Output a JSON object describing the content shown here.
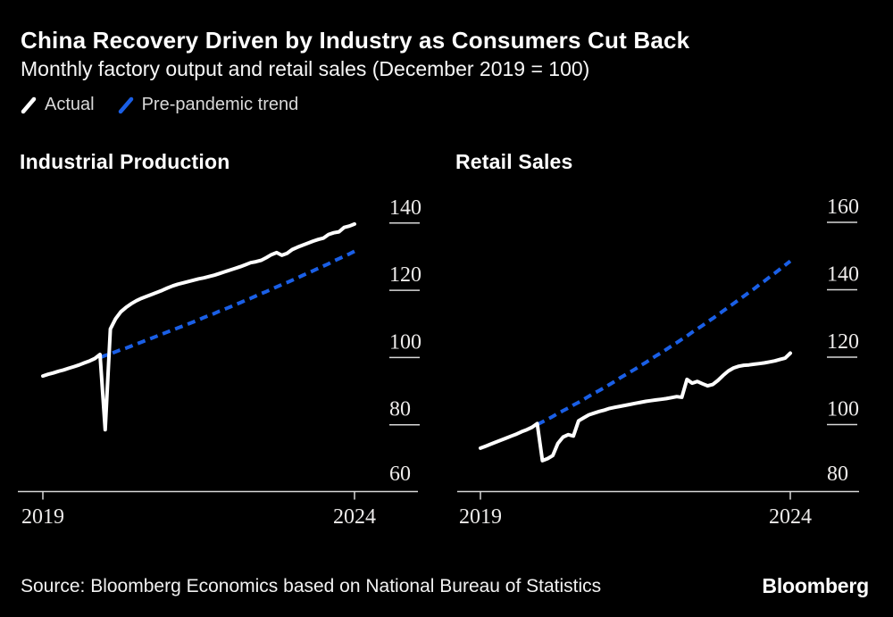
{
  "header": {
    "title": "China Recovery Driven by Industry as Consumers Cut Back",
    "subtitle": "Monthly factory output and retail sales (December 2019 = 100)"
  },
  "legend": {
    "actual_label": "Actual",
    "trend_label": "Pre-pandemic trend"
  },
  "colors": {
    "background": "#000000",
    "actual": "#ffffff",
    "trend": "#1a5fe6",
    "axis_line": "#d8d8d8",
    "axis_text": "#eeeceb"
  },
  "footer": {
    "source": "Source: Bloomberg Economics based on National Bureau of Statistics",
    "logo": "Bloomberg"
  },
  "chart_data": [
    {
      "type": "line",
      "title": "Industrial Production",
      "x_unit": "months since Jan 2019 (0 = Jan 2019, 60 = Jan 2024)",
      "x_tick_labels": [
        "2019",
        "2024"
      ],
      "x_tick_positions": [
        0,
        60
      ],
      "y_ticks": [
        140,
        120,
        100,
        80,
        60
      ],
      "ylim": [
        60,
        147
      ],
      "grid": false,
      "legend_position": "top-left-of-figure",
      "series": [
        {
          "name": "Actual",
          "style": "solid",
          "color_key": "actual",
          "x_start": 0,
          "values": [
            94.5,
            95.0,
            95.4,
            95.9,
            96.3,
            96.8,
            97.3,
            97.8,
            98.4,
            99.0,
            99.7,
            100.9,
            78.5,
            108.5,
            111.5,
            113.6,
            114.9,
            116.0,
            116.9,
            117.6,
            118.2,
            118.8,
            119.4,
            120.0,
            120.7,
            121.3,
            121.8,
            122.2,
            122.6,
            123.0,
            123.4,
            123.7,
            124.1,
            124.5,
            125.0,
            125.5,
            126.0,
            126.5,
            127.0,
            127.6,
            128.2,
            128.5,
            128.9,
            129.7,
            130.6,
            131.2,
            130.4,
            131.0,
            132.1,
            132.8,
            133.4,
            134.0,
            134.6,
            135.1,
            135.5,
            136.6,
            137.1,
            137.4,
            138.7,
            139.1,
            139.7
          ]
        },
        {
          "name": "Pre-pandemic trend",
          "style": "dashed",
          "color_key": "trend",
          "x_start": 11,
          "values": [
            100.0,
            100.6,
            101.1,
            101.7,
            102.3,
            102.8,
            103.4,
            104.0,
            104.6,
            105.2,
            105.8,
            106.4,
            107.0,
            107.6,
            108.2,
            108.8,
            109.4,
            110.0,
            110.6,
            111.2,
            111.9,
            112.5,
            113.1,
            113.8,
            114.4,
            115.0,
            115.7,
            116.3,
            117.0,
            117.6,
            118.3,
            119.0,
            119.6,
            120.3,
            121.0,
            121.7,
            122.3,
            123.0,
            123.7,
            124.4,
            125.1,
            125.8,
            126.5,
            127.2,
            127.9,
            128.7,
            129.4,
            130.1,
            130.8,
            131.6
          ]
        }
      ]
    },
    {
      "type": "line",
      "title": "Retail Sales",
      "x_unit": "months since Jan 2019 (0 = Jan 2019, 60 = Jan 2024)",
      "x_tick_labels": [
        "2019",
        "2024"
      ],
      "x_tick_positions": [
        0,
        60
      ],
      "y_ticks": [
        160,
        140,
        120,
        100,
        80
      ],
      "ylim": [
        80,
        167
      ],
      "grid": false,
      "legend_position": "top-left-of-figure",
      "series": [
        {
          "name": "Actual",
          "style": "solid",
          "color_key": "actual",
          "x_start": 0,
          "values": [
            93.0,
            93.6,
            94.2,
            94.8,
            95.4,
            96.0,
            96.6,
            97.2,
            97.9,
            98.5,
            99.2,
            100.3,
            89.3,
            89.9,
            90.8,
            94.4,
            96.3,
            97.0,
            96.6,
            101.1,
            102.0,
            102.9,
            103.4,
            103.9,
            104.3,
            104.8,
            105.1,
            105.4,
            105.7,
            106.0,
            106.3,
            106.6,
            106.9,
            107.1,
            107.3,
            107.5,
            107.7,
            108.0,
            108.3,
            108.1,
            113.4,
            112.3,
            112.8,
            112.1,
            111.5,
            111.9,
            113.1,
            114.6,
            115.9,
            116.8,
            117.3,
            117.6,
            117.7,
            117.9,
            118.1,
            118.3,
            118.6,
            118.9,
            119.3,
            119.7,
            121.2
          ]
        },
        {
          "name": "Pre-pandemic trend",
          "style": "dashed",
          "color_key": "trend",
          "x_start": 11,
          "values": [
            100.0,
            100.8,
            101.6,
            102.4,
            103.3,
            104.1,
            104.9,
            105.8,
            106.6,
            107.5,
            108.4,
            109.3,
            110.1,
            111.0,
            111.9,
            112.8,
            113.8,
            114.7,
            115.6,
            116.5,
            117.5,
            118.4,
            119.4,
            120.4,
            121.3,
            122.3,
            123.3,
            124.3,
            125.3,
            126.3,
            127.4,
            128.4,
            129.4,
            130.5,
            131.5,
            132.6,
            133.7,
            134.8,
            135.9,
            137.0,
            138.1,
            139.2,
            140.3,
            141.5,
            142.6,
            143.8,
            144.9,
            146.1,
            147.3,
            148.5
          ]
        }
      ]
    }
  ]
}
